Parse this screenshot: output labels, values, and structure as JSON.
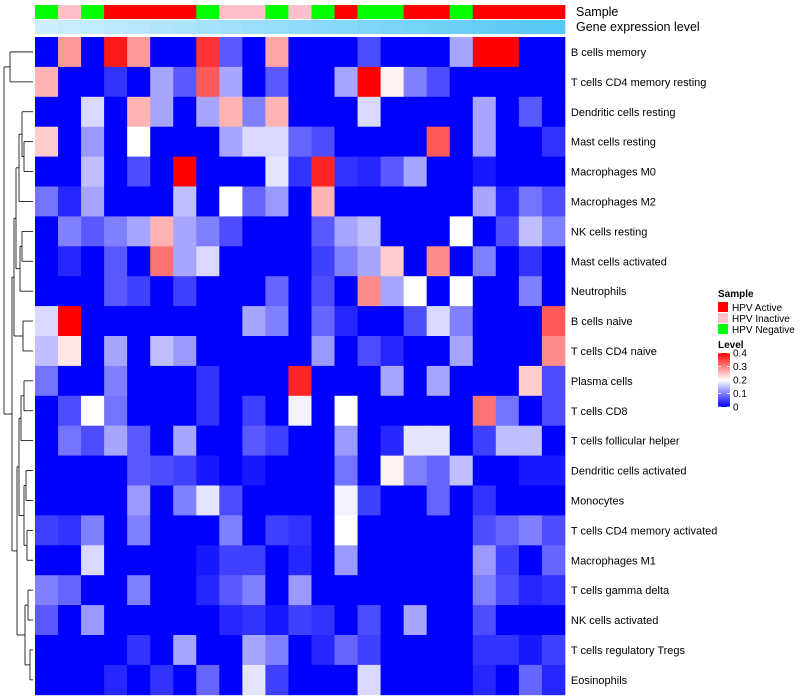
{
  "chart_data": {
    "type": "heatmap",
    "annotation_labels": [
      "Sample",
      "Gene expression level"
    ],
    "rows": [
      "B cells memory",
      "T cells CD4 memory resting",
      "Dendritic cells resting",
      "Mast cells resting",
      "Macrophages M0",
      "Macrophages M2",
      "NK cells resting",
      "Mast cells activated",
      "Neutrophils",
      "B cells naive",
      "T cells CD4 naive",
      "Plasma cells",
      "T cells CD8",
      "T cells follicular helper",
      "Dendritic cells activated",
      "Monocytes",
      "T cells CD4 memory activated",
      "Macrophages M1",
      "T cells gamma delta",
      "NK cells activated",
      "T cells regulatory  Tregs",
      "Eosinophils"
    ],
    "sample_groups": [
      "N",
      "I",
      "N",
      "A",
      "A",
      "A",
      "A",
      "N",
      "I",
      "I",
      "N",
      "I",
      "N",
      "A",
      "N",
      "N",
      "A",
      "A",
      "N",
      "A",
      "A",
      "A",
      "A"
    ],
    "expression_levels": [
      0.02,
      0.03,
      0.04,
      0.05,
      0.06,
      0.07,
      0.08,
      0.09,
      0.1,
      0.11,
      0.12,
      0.13,
      0.14,
      0.15,
      0.16,
      0.17,
      0.18,
      0.19,
      0.2,
      0.21,
      0.22,
      0.23,
      0.24
    ],
    "values": [
      [
        0.0,
        0.28,
        0.0,
        0.38,
        0.28,
        0.0,
        0.0,
        0.36,
        0.07,
        0.0,
        0.27,
        0.0,
        0.0,
        0.0,
        0.06,
        0.0,
        0.0,
        0.0,
        0.13,
        0.4,
        0.4,
        0.0,
        0.0
      ],
      [
        0.26,
        0.0,
        0.0,
        0.04,
        0.0,
        0.13,
        0.07,
        0.33,
        0.13,
        0.0,
        0.07,
        0.0,
        0.0,
        0.13,
        0.4,
        0.21,
        0.1,
        0.06,
        0.0,
        0.0,
        0.0,
        0.0,
        0.0
      ],
      [
        0.0,
        0.0,
        0.17,
        0.0,
        0.26,
        0.13,
        0.0,
        0.13,
        0.26,
        0.1,
        0.26,
        0.0,
        0.0,
        0.0,
        0.17,
        0.0,
        0.0,
        0.0,
        0.0,
        0.13,
        0.0,
        0.07,
        0.0
      ],
      [
        0.24,
        0.0,
        0.12,
        0.0,
        0.2,
        0.0,
        0.0,
        0.0,
        0.13,
        0.17,
        0.17,
        0.08,
        0.06,
        0.0,
        0.0,
        0.0,
        0.0,
        0.33,
        0.0,
        0.13,
        0.0,
        0.0,
        0.04
      ],
      [
        0.0,
        0.0,
        0.15,
        0.0,
        0.06,
        0.0,
        0.4,
        0.0,
        0.0,
        0.0,
        0.18,
        0.04,
        0.37,
        0.04,
        0.03,
        0.07,
        0.13,
        0.0,
        0.0,
        0.02,
        0.0,
        0.0,
        0.0
      ],
      [
        0.09,
        0.03,
        0.13,
        0.0,
        0.0,
        0.0,
        0.15,
        0.0,
        0.2,
        0.08,
        0.12,
        0.0,
        0.26,
        0.0,
        0.0,
        0.0,
        0.0,
        0.0,
        0.0,
        0.13,
        0.03,
        0.09,
        0.06
      ],
      [
        0.0,
        0.1,
        0.07,
        0.1,
        0.13,
        0.26,
        0.13,
        0.1,
        0.06,
        0.0,
        0.0,
        0.0,
        0.07,
        0.13,
        0.15,
        0.0,
        0.0,
        0.0,
        0.2,
        0.0,
        0.06,
        0.15,
        0.1
      ],
      [
        0.0,
        0.03,
        0.0,
        0.07,
        0.0,
        0.31,
        0.13,
        0.17,
        0.0,
        0.0,
        0.0,
        0.0,
        0.05,
        0.1,
        0.13,
        0.24,
        0.0,
        0.29,
        0.0,
        0.1,
        0.0,
        0.04,
        0.0
      ],
      [
        0.0,
        0.0,
        0.0,
        0.07,
        0.05,
        0.0,
        0.05,
        0.0,
        0.0,
        0.0,
        0.08,
        0.0,
        0.06,
        0.0,
        0.29,
        0.13,
        0.2,
        0.0,
        0.2,
        0.0,
        0.0,
        0.1,
        0.0
      ],
      [
        0.17,
        0.4,
        0.0,
        0.0,
        0.0,
        0.0,
        0.0,
        0.0,
        0.0,
        0.13,
        0.1,
        0.0,
        0.08,
        0.03,
        0.0,
        0.0,
        0.06,
        0.17,
        0.1,
        0.0,
        0.0,
        0.0,
        0.33
      ],
      [
        0.15,
        0.22,
        0.0,
        0.13,
        0.0,
        0.15,
        0.12,
        0.0,
        0.0,
        0.0,
        0.0,
        0.0,
        0.12,
        0.0,
        0.06,
        0.03,
        0.0,
        0.0,
        0.13,
        0.0,
        0.0,
        0.0,
        0.29
      ],
      [
        0.09,
        0.0,
        0.0,
        0.1,
        0.0,
        0.0,
        0.0,
        0.04,
        0.0,
        0.0,
        0.0,
        0.37,
        0.0,
        0.0,
        0.0,
        0.13,
        0.0,
        0.13,
        0.0,
        0.0,
        0.0,
        0.24,
        0.06
      ],
      [
        0.0,
        0.06,
        0.2,
        0.09,
        0.0,
        0.0,
        0.0,
        0.04,
        0.0,
        0.05,
        0.0,
        0.19,
        0.0,
        0.2,
        0.0,
        0.0,
        0.0,
        0.0,
        0.0,
        0.31,
        0.09,
        0.0,
        0.06
      ],
      [
        0.0,
        0.09,
        0.06,
        0.13,
        0.07,
        0.0,
        0.13,
        0.0,
        0.0,
        0.07,
        0.05,
        0.0,
        0.0,
        0.12,
        0.0,
        0.03,
        0.18,
        0.18,
        0.0,
        0.05,
        0.15,
        0.15,
        0.0
      ],
      [
        0.0,
        0.0,
        0.0,
        0.0,
        0.07,
        0.06,
        0.05,
        0.02,
        0.0,
        0.02,
        0.0,
        0.0,
        0.0,
        0.09,
        0.0,
        0.21,
        0.1,
        0.08,
        0.15,
        0.0,
        0.0,
        0.02,
        0.02
      ],
      [
        0.0,
        0.0,
        0.0,
        0.0,
        0.12,
        0.0,
        0.1,
        0.18,
        0.06,
        0.0,
        0.0,
        0.0,
        0.0,
        0.19,
        0.05,
        0.0,
        0.0,
        0.08,
        0.0,
        0.04,
        0.0,
        0.0,
        0.0
      ],
      [
        0.05,
        0.04,
        0.1,
        0.0,
        0.1,
        0.0,
        0.0,
        0.0,
        0.1,
        0.0,
        0.05,
        0.04,
        0.0,
        0.2,
        0.0,
        0.0,
        0.0,
        0.0,
        0.0,
        0.06,
        0.08,
        0.1,
        0.06
      ],
      [
        0.0,
        0.0,
        0.17,
        0.0,
        0.0,
        0.0,
        0.0,
        0.02,
        0.05,
        0.05,
        0.0,
        0.03,
        0.0,
        0.12,
        0.0,
        0.0,
        0.0,
        0.0,
        0.0,
        0.12,
        0.05,
        0.0,
        0.08
      ],
      [
        0.1,
        0.08,
        0.0,
        0.0,
        0.1,
        0.0,
        0.0,
        0.03,
        0.07,
        0.1,
        0.0,
        0.12,
        0.0,
        0.0,
        0.0,
        0.0,
        0.0,
        0.0,
        0.0,
        0.1,
        0.06,
        0.03,
        0.04
      ],
      [
        0.07,
        0.0,
        0.12,
        0.0,
        0.0,
        0.0,
        0.0,
        0.0,
        0.03,
        0.04,
        0.02,
        0.05,
        0.04,
        0.0,
        0.06,
        0.0,
        0.13,
        0.0,
        0.0,
        0.06,
        0.0,
        0.0,
        0.0
      ],
      [
        0.0,
        0.0,
        0.0,
        0.0,
        0.04,
        0.0,
        0.13,
        0.0,
        0.0,
        0.13,
        0.1,
        0.0,
        0.03,
        0.08,
        0.05,
        0.0,
        0.0,
        0.0,
        0.0,
        0.04,
        0.04,
        0.02,
        0.05
      ],
      [
        0.0,
        0.0,
        0.0,
        0.03,
        0.0,
        0.04,
        0.0,
        0.08,
        0.0,
        0.18,
        0.05,
        0.0,
        0.0,
        0.0,
        0.17,
        0.0,
        0.0,
        0.0,
        0.0,
        0.03,
        0.0,
        0.08,
        0.03
      ]
    ],
    "legend": {
      "sample_title": "Sample",
      "sample_entries": [
        {
          "key": "A",
          "label": "HPV Active",
          "color": "#FF0000"
        },
        {
          "key": "I",
          "label": "HPV Inactive",
          "color": "#FFC0CB"
        },
        {
          "key": "N",
          "label": "HPV Negative",
          "color": "#00FF00"
        }
      ],
      "level_title": "Level",
      "level_ticks": [
        "0.4",
        "0.3",
        "0.2",
        "0.1",
        "0"
      ],
      "level_range": [
        0,
        0.4
      ]
    },
    "colors": {
      "low": "#0000FF",
      "mid": "#FFFFFF",
      "high": "#FF0000",
      "expr_low": "#CCEEFF",
      "expr_high": "#55C8F5"
    }
  }
}
